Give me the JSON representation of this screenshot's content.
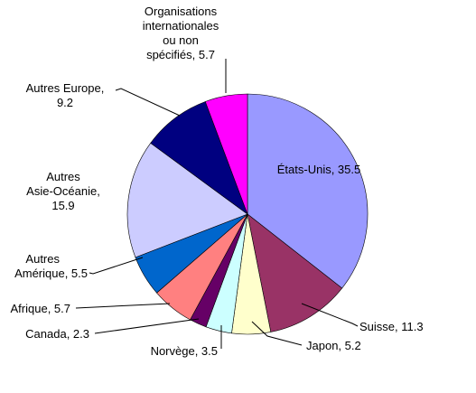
{
  "chart_data": {
    "type": "pie",
    "start_angle_deg": 0,
    "direction": "clockwise",
    "border_color": "#000000",
    "label_format": "name, value",
    "slices": [
      {
        "name": "États-Unis",
        "value": 35.5,
        "color": "#9999FF"
      },
      {
        "name": "Suisse",
        "value": 11.3,
        "color": "#993366"
      },
      {
        "name": "Japon",
        "value": 5.2,
        "color": "#FFFFCC"
      },
      {
        "name": "Norvège",
        "value": 3.5,
        "color": "#CCFFFF"
      },
      {
        "name": "Canada",
        "value": 2.3,
        "color": "#660066"
      },
      {
        "name": "Afrique",
        "value": 5.7,
        "color": "#FF8080"
      },
      {
        "name": "Autres Amérique",
        "value": 5.5,
        "color": "#0066CC"
      },
      {
        "name": "Autres Asie-Océanie",
        "value": 15.9,
        "color": "#CCCCFF"
      },
      {
        "name": "Autres Europe",
        "value": 9.2,
        "color": "#000080"
      },
      {
        "name": "Organisations internationales ou non spécifiés",
        "value": 5.7,
        "color": "#FF00FF"
      }
    ]
  }
}
